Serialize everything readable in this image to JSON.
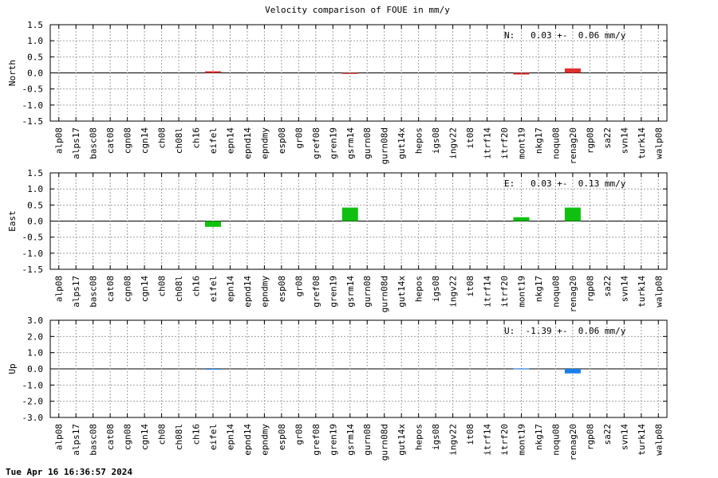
{
  "title": "Velocity comparison of FOUE in mm/y",
  "footer": "Tue Apr 16 16:36:57 2024",
  "categories": [
    "alp08",
    "alps17",
    "basc08",
    "cat08",
    "cgn08",
    "cgn14",
    "ch08",
    "ch08l",
    "ch16",
    "eifel",
    "epn14",
    "epnd14",
    "epndmy",
    "esp08",
    "gr08",
    "gref08",
    "gren19",
    "gsrm14",
    "gurn08",
    "gurn08d",
    "gut14x",
    "hepos",
    "igs08",
    "ingv22",
    "it08",
    "itrf14",
    "itrf20",
    "mont19",
    "nkg17",
    "noqu08",
    "renag20",
    "rgp08",
    "sa22",
    "svn14",
    "turk14",
    "walp08"
  ],
  "chart_data": [
    {
      "type": "bar",
      "ylabel": "North",
      "ylim": [
        -1.5,
        1.5
      ],
      "yticks": [
        1.5,
        1.0,
        0.5,
        0.0,
        -0.5,
        -1.0,
        -1.5
      ],
      "ytick_labels": [
        "1.5",
        "1.0",
        "0.5",
        "0.0",
        "-0.5",
        "-1.0",
        "-1.5"
      ],
      "grid": true,
      "color": "#e03030",
      "annotation": "N:   0.03 +-  0.06 mm/y",
      "values": {
        "eifel": 0.05,
        "gsrm14": -0.03,
        "mont19": -0.05,
        "renag20": 0.14
      }
    },
    {
      "type": "bar",
      "ylabel": "East",
      "ylim": [
        -1.5,
        1.5
      ],
      "yticks": [
        1.5,
        1.0,
        0.5,
        0.0,
        -0.5,
        -1.0,
        -1.5
      ],
      "ytick_labels": [
        "1.5",
        "1.0",
        "0.5",
        "0.0",
        "-0.5",
        "-1.0",
        "-1.5"
      ],
      "grid": true,
      "color": "#10c010",
      "annotation": "E:   0.03 +-  0.13 mm/y",
      "values": {
        "eifel": -0.18,
        "gsrm14": 0.42,
        "mont19": 0.12,
        "renag20": 0.42
      }
    },
    {
      "type": "bar",
      "ylabel": "Up",
      "ylim": [
        -3.0,
        3.0
      ],
      "yticks": [
        3.0,
        2.0,
        1.0,
        0.0,
        -1.0,
        -2.0,
        -3.0
      ],
      "ytick_labels": [
        "3.0",
        "2.0",
        "1.0",
        "0.0",
        "-1.0",
        "-2.0",
        "-3.0"
      ],
      "grid": true,
      "color": "#1a7fe8",
      "annotation": "U:  -1.39 +-  0.06 mm/y",
      "values": {
        "eifel": -0.05,
        "mont19": 0.03,
        "renag20": -0.28
      }
    }
  ]
}
